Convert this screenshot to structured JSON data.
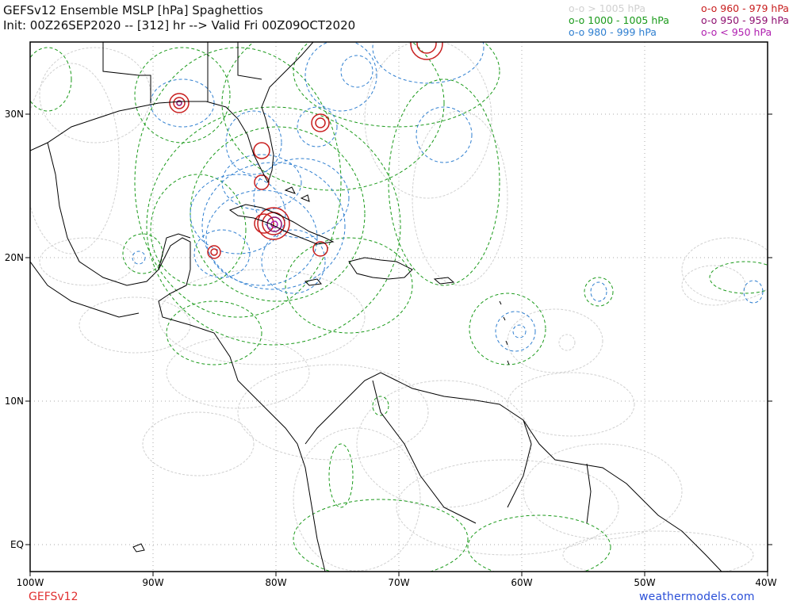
{
  "header": {
    "title": "GEFSv12 Ensemble MSLP [hPa] Spaghettios",
    "subtitle": "Init: 00Z26SEP2020 -- [312] hr --> Valid Fri 00Z09OCT2020"
  },
  "legend": [
    {
      "marker": "o-o",
      "label": "> 1005 hPa",
      "color": "#d0d0d0"
    },
    {
      "marker": "o-o",
      "label": "1000 - 1005 hPa",
      "color": "#1a9a1a"
    },
    {
      "marker": "o-o",
      "label": "980 - 999 hPa",
      "color": "#2f7fd0"
    },
    {
      "marker": "o-o",
      "label": "960 - 979 hPa",
      "color": "#c81e1e"
    },
    {
      "marker": "o-o",
      "label": "950 - 959 hPa",
      "color": "#8e1070"
    },
    {
      "marker": "o-o",
      "label": "< 950 hPa",
      "color": "#b020b0"
    }
  ],
  "axes": {
    "lat_labels": [
      "30N",
      "20N",
      "10N",
      "EQ"
    ],
    "lon_labels": [
      "100W",
      "90W",
      "80W",
      "70W",
      "60W",
      "50W",
      "40W"
    ]
  },
  "footer": {
    "model": "GEFSv12",
    "site": "weathermodels.com"
  },
  "colors": {
    "gray": "#d0d0d0",
    "green": "#1a9a1a",
    "blue": "#2f7fd0",
    "red": "#c81e1e",
    "darkred": "#8e1070",
    "magenta": "#b020b0",
    "land": "#000000",
    "grid": "#aaaaaa",
    "model_label": "#e03030",
    "site_label": "#2a4fd8"
  }
}
